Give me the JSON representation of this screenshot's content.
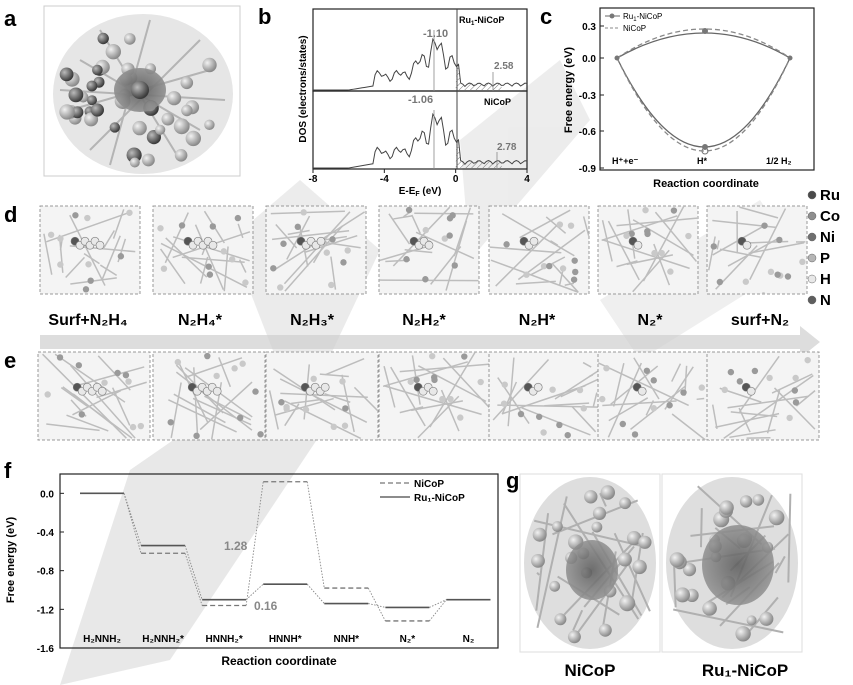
{
  "panel_labels": [
    "a",
    "b",
    "c",
    "d",
    "e",
    "f",
    "g"
  ],
  "panel_b": {
    "ylabel": "DOS (electrons/states)",
    "xlabel_main": "E-E",
    "xlabel_sub": "F",
    "xlabel_unit": " (eV)",
    "xticks": [
      "-8",
      "-4",
      "0",
      "4"
    ],
    "top": {
      "legend_main": "Ru",
      "legend_sub": "1",
      "legend_rest": "-NiCoP",
      "peak_label": "-1.10",
      "right_label": "2.58"
    },
    "bottom": {
      "legend": "NiCoP",
      "peak_label": "-1.06",
      "right_label": "2.78"
    }
  },
  "panel_c": {
    "ylabel": "Free energy (eV)",
    "xlabel": "Reaction coordinate",
    "yticks": [
      "0.3",
      "0.0",
      "-0.3",
      "-0.6",
      "-0.9"
    ],
    "legend": [
      {
        "main": "Ru",
        "sub": "1",
        "rest": "-NiCoP"
      },
      {
        "main": "NiCoP",
        "sub": "",
        "rest": ""
      }
    ],
    "x_states": [
      "H⁺+e⁻",
      "H*",
      "1/2 H₂"
    ]
  },
  "panel_d": {
    "steps": [
      "Surf+N₂H₄",
      "N₂H₄*",
      "N₂H₃*",
      "N₂H₂*",
      "N₂H*",
      "N₂*",
      "surf+N₂"
    ]
  },
  "element_legend": [
    "Ru",
    "Co",
    "Ni",
    "P",
    "H",
    "N"
  ],
  "element_colors": [
    "#4a4a4a",
    "#8e8e8e",
    "#6f6f6f",
    "#b5b5b5",
    "#e8e8e8",
    "#5e5e5e"
  ],
  "chart_data": {
    "type": "line",
    "title": "",
    "xlabel": "Reaction coordinate",
    "ylabel": "Free energy (eV)",
    "categories": [
      "H₂NNH₂",
      "H₂NNH₂*",
      "HNNH₂*",
      "HNNH*",
      "NNH*",
      "N₂*",
      "N₂"
    ],
    "ylim": [
      -1.6,
      0.2
    ],
    "yticks": [
      "0.0",
      "-0.4",
      "-0.8",
      "-1.2",
      "-1.6"
    ],
    "series": [
      {
        "name": "NiCoP",
        "values": [
          0.0,
          -0.62,
          -1.16,
          0.12,
          -0.98,
          -1.32,
          -1.1
        ]
      },
      {
        "name": "Ru₁-NiCoP",
        "values": [
          0.0,
          -0.54,
          -1.1,
          -0.94,
          -1.14,
          -1.18,
          -1.1
        ]
      }
    ],
    "annotations": [
      "1.28",
      "0.16"
    ]
  },
  "panel_g": {
    "labels": [
      "NiCoP",
      "Ru₁-NiCoP"
    ]
  }
}
